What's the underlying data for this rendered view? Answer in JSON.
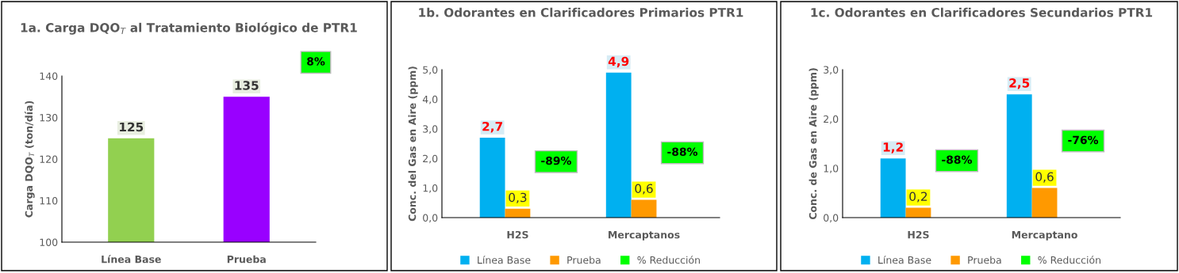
{
  "chart_data": [
    {
      "type": "bar",
      "title": "1a. Carga DQO$_{T}$ al Tratamiento Biológico de PTR1",
      "ylabel": "Carga DQO$_{T}$ (ton/día)",
      "categories": [
        "Línea Base",
        "Prueba"
      ],
      "values": [
        125,
        135
      ],
      "colors": [
        "#92d050",
        "#9900ff"
      ],
      "ylim": [
        100,
        140
      ],
      "yticks": [
        100,
        110,
        120,
        130,
        140
      ],
      "data_labels": true,
      "grid": false,
      "legend": false,
      "annotations": [
        "8%"
      ]
    },
    {
      "type": "bar",
      "title": "1b. Odorantes en Clarificadores Primarios PTR1",
      "ylabel": "Conc. del Gas en Aire (ppm)",
      "categories": [
        "H2S",
        "Mercaptanos"
      ],
      "ylim": [
        0,
        5
      ],
      "yticks": [
        {
          "value": 0,
          "label": "0,0"
        },
        {
          "value": 1,
          "label": "1,0"
        },
        {
          "value": 2,
          "label": "2,0"
        },
        {
          "value": 3,
          "label": "3,0"
        },
        {
          "value": 4,
          "label": "4,0"
        },
        {
          "value": 5,
          "label": "5,0"
        }
      ],
      "grid": false,
      "legend": "bottom",
      "series": [
        {
          "name": "Línea Base",
          "color": "#00b0f0",
          "values": [
            2.7,
            4.9
          ],
          "value_labels": [
            "2,7",
            "4,9"
          ]
        },
        {
          "name": "Prueba",
          "color": "#ff9900",
          "values": [
            0.3,
            0.6
          ],
          "value_labels": [
            "0,3",
            "0,6"
          ]
        },
        {
          "name": "% Reducción",
          "color": "#00ff00",
          "values": [
            null,
            null
          ],
          "value_labels": [
            "-89%",
            "-88%"
          ]
        }
      ]
    },
    {
      "type": "bar",
      "title": "1c. Odorantes en Clarificadores Secundarios PTR1",
      "ylabel": "Conc. de Gas en Aire (ppm)",
      "categories": [
        "H2S",
        "Mercaptano"
      ],
      "ylim": [
        0,
        3
      ],
      "yticks": [
        {
          "value": 0,
          "label": "0,0"
        },
        {
          "value": 1,
          "label": "1,0"
        },
        {
          "value": 2,
          "label": "2,0"
        },
        {
          "value": 3,
          "label": "3,0"
        }
      ],
      "grid": false,
      "legend": "bottom",
      "series": [
        {
          "name": "Línea Base",
          "color": "#00b0f0",
          "values": [
            1.2,
            2.5
          ],
          "value_labels": [
            "1,2",
            "2,5"
          ]
        },
        {
          "name": "Prueba",
          "color": "#ff9900",
          "values": [
            0.2,
            0.6
          ],
          "value_labels": [
            "0,2",
            "0,6"
          ]
        },
        {
          "name": "% Reducción",
          "color": "#00ff00",
          "values": [
            null,
            null
          ],
          "value_labels": [
            "-88%",
            "-76%"
          ]
        }
      ]
    }
  ]
}
